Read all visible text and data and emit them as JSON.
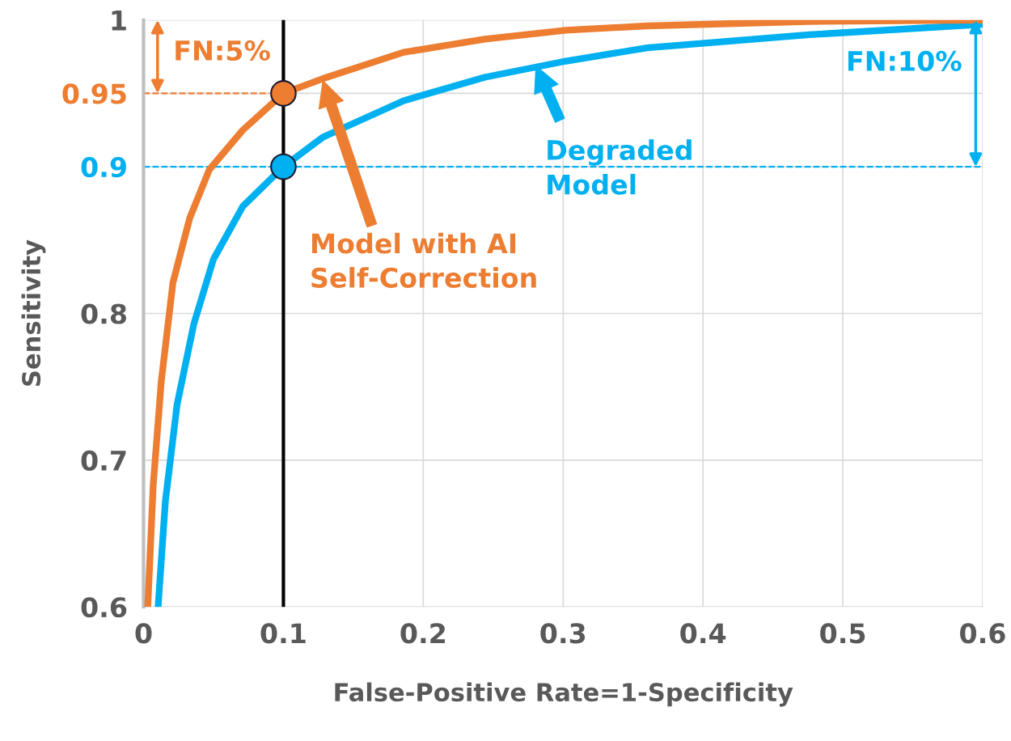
{
  "chart_data": {
    "type": "line",
    "xlabel": "False-Positive Rate=1-Specificity",
    "ylabel": "Sensitivity",
    "xlim": [
      0,
      0.6
    ],
    "xticks": [
      0,
      0.1,
      0.2,
      0.3,
      0.4,
      0.5,
      0.6
    ],
    "ylim": [
      0.6,
      1
    ],
    "yticks": [
      0.6,
      0.7,
      0.8,
      0.9,
      0.95,
      1
    ],
    "grid": true,
    "legend": false,
    "series": [
      {
        "color": "#00b0f0",
        "x": [
          0.0104,
          0.0156,
          0.024,
          0.036,
          0.05,
          0.071,
          0.1,
          0.128,
          0.186,
          0.244,
          0.302,
          0.36,
          0.476,
          0.6
        ],
        "values": [
          0.6,
          0.672,
          0.738,
          0.793,
          0.837,
          0.873,
          0.9,
          0.92,
          0.945,
          0.961,
          0.972,
          0.981,
          0.99,
          0.997
        ]
      },
      {
        "color": "#ed7d31",
        "x": [
          0.003,
          0.0069,
          0.0127,
          0.021,
          0.033,
          0.047,
          0.071,
          0.1,
          0.128,
          0.186,
          0.244,
          0.302,
          0.36,
          0.476,
          0.6
        ],
        "values": [
          0.6,
          0.683,
          0.754,
          0.821,
          0.865,
          0.898,
          0.925,
          0.95,
          0.96,
          0.978,
          0.987,
          0.993,
          0.996,
          0.999,
          1.0
        ]
      },
      {
        "color": "#00b0f0",
        "line_style": "dashed",
        "x": [
          0,
          0.6
        ],
        "values": [
          0.9,
          0.9
        ]
      },
      {
        "color": "#ed7d31",
        "line_style": "dashed",
        "x": [
          0,
          0.09
        ],
        "values": [
          0.95,
          0.95
        ]
      },
      {
        "type": "scatter",
        "marker": "circle",
        "color": "#00b0f0",
        "x": [
          0.1
        ],
        "values": [
          0.9
        ]
      },
      {
        "type": "scatter",
        "marker": "circle",
        "color": "#ed7d31",
        "x": [
          0.1
        ],
        "values": [
          0.95
        ]
      }
    ],
    "ref_lines": [
      {
        "axis": "x",
        "value": 0.1,
        "color": "#000000"
      }
    ],
    "annotations": [
      {
        "text": "FN:5%",
        "x": 0.01,
        "y": 0.95
      },
      {
        "text": "FN:10%",
        "x": 0.595,
        "y": 0.9
      },
      {
        "text": "Degraded\nModel",
        "x": 0.28,
        "y": 0.97
      },
      "Model with AI\nSelf-Correction"
    ]
  }
}
